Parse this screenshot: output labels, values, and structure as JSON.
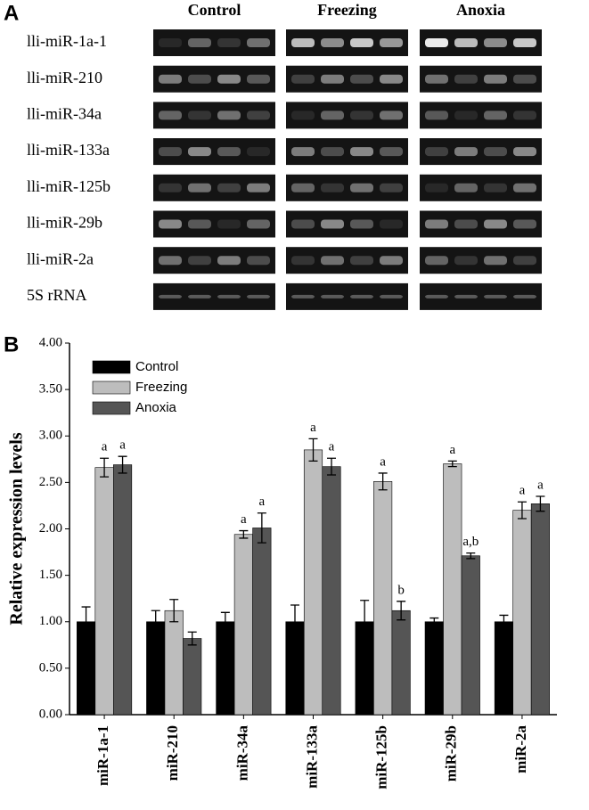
{
  "panel_a": {
    "label": "A",
    "groups": [
      "Control",
      "Freezing",
      "Anoxia"
    ],
    "rows": [
      "lli-miR-1a-1",
      "lli-miR-210",
      "lli-miR-34a",
      "lli-miR-133a",
      "lli-miR-125b",
      "lli-miR-29b",
      "lli-miR-2a",
      "5S rRNA"
    ]
  },
  "chart_data": {
    "type": "bar",
    "panel_label": "B",
    "ylabel": "Relative expression levels",
    "categories": [
      "miR-1a-1",
      "miR-210",
      "miR-34a",
      "miR-133a",
      "miR-125b",
      "miR-29b",
      "miR-2a"
    ],
    "series": [
      {
        "name": "Control",
        "color": "#000000",
        "values": [
          1,
          1,
          1,
          1,
          1,
          1,
          1
        ],
        "errors": [
          0.16,
          0.12,
          0.1,
          0.18,
          0.23,
          0.04,
          0.07
        ],
        "annotations": [
          null,
          null,
          null,
          null,
          null,
          null,
          null
        ]
      },
      {
        "name": "Freezing",
        "color": "#bdbdbd",
        "values": [
          2.66,
          1.12,
          1.94,
          2.85,
          2.51,
          2.7,
          2.2
        ],
        "errors": [
          0.1,
          0.12,
          0.04,
          0.12,
          0.09,
          0.03,
          0.09
        ],
        "annotations": [
          "a",
          null,
          "a",
          "a",
          "a",
          "a",
          "a"
        ]
      },
      {
        "name": "Anoxia",
        "color": "#555555",
        "values": [
          2.69,
          0.82,
          2.01,
          2.67,
          1.12,
          1.71,
          2.27
        ],
        "errors": [
          0.09,
          0.07,
          0.16,
          0.09,
          0.1,
          0.03,
          0.08
        ],
        "annotations": [
          "a",
          null,
          "a",
          "a",
          "b",
          "a,b",
          "a"
        ]
      }
    ],
    "ylim": [
      0,
      4
    ],
    "yticks": [
      {
        "value": 0,
        "label": "0.00"
      },
      {
        "value": 0.5,
        "label": "0.50"
      },
      {
        "value": 1,
        "label": "1.00"
      },
      {
        "value": 1.5,
        "label": "1.50"
      },
      {
        "value": 2,
        "label": "2.00"
      },
      {
        "value": 2.5,
        "label": "2.50"
      },
      {
        "value": 3,
        "label": "3.00"
      },
      {
        "value": 3.5,
        "label": "3.50"
      },
      {
        "value": 4,
        "label": "4.00"
      }
    ],
    "legend": "upper left"
  }
}
